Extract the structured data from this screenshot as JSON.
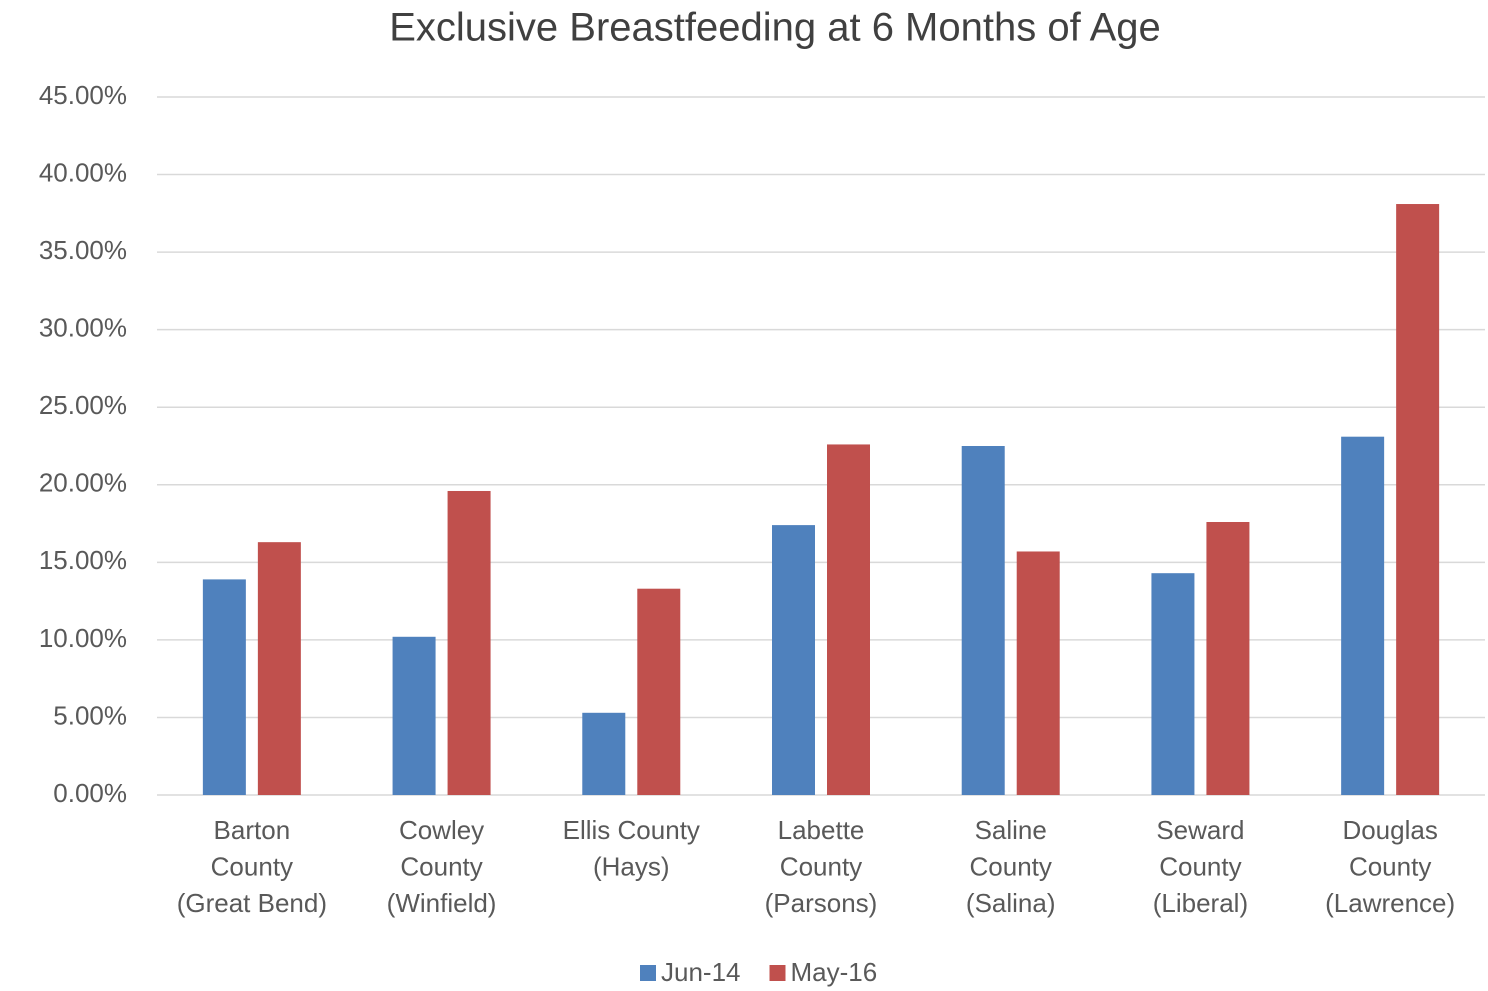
{
  "chart_data": {
    "type": "bar",
    "title": "Exclusive Breastfeeding at 6 Months of Age",
    "categories": [
      [
        "Barton",
        "County",
        "(Great Bend)"
      ],
      [
        "Cowley",
        "County",
        "(Winfield)"
      ],
      [
        "Ellis County",
        "(Hays)"
      ],
      [
        "Labette",
        "County",
        "(Parsons)"
      ],
      [
        "Saline",
        "County",
        "(Salina)"
      ],
      [
        "Seward",
        "County",
        "(Liberal)"
      ],
      [
        "Douglas",
        "County",
        "(Lawrence)"
      ]
    ],
    "series": [
      {
        "name": "Jun-14",
        "color": "#4f81bd",
        "values": [
          13.9,
          10.2,
          5.3,
          17.4,
          22.5,
          14.3,
          23.1
        ]
      },
      {
        "name": "May-16",
        "color": "#c0504d",
        "values": [
          16.3,
          19.6,
          13.3,
          22.6,
          15.7,
          17.6,
          38.1
        ]
      }
    ],
    "ylim": [
      0,
      45
    ],
    "yticks": [
      {
        "value": 0,
        "label": "0.00%"
      },
      {
        "value": 5,
        "label": "5.00%"
      },
      {
        "value": 10,
        "label": "10.00%"
      },
      {
        "value": 15,
        "label": "15.00%"
      },
      {
        "value": 20,
        "label": "20.00%"
      },
      {
        "value": 25,
        "label": "25.00%"
      },
      {
        "value": 30,
        "label": "30.00%"
      },
      {
        "value": 35,
        "label": "35.00%"
      },
      {
        "value": 40,
        "label": "40.00%"
      },
      {
        "value": 45,
        "label": "45.00%"
      }
    ],
    "grid": true,
    "legend": "bottom"
  }
}
